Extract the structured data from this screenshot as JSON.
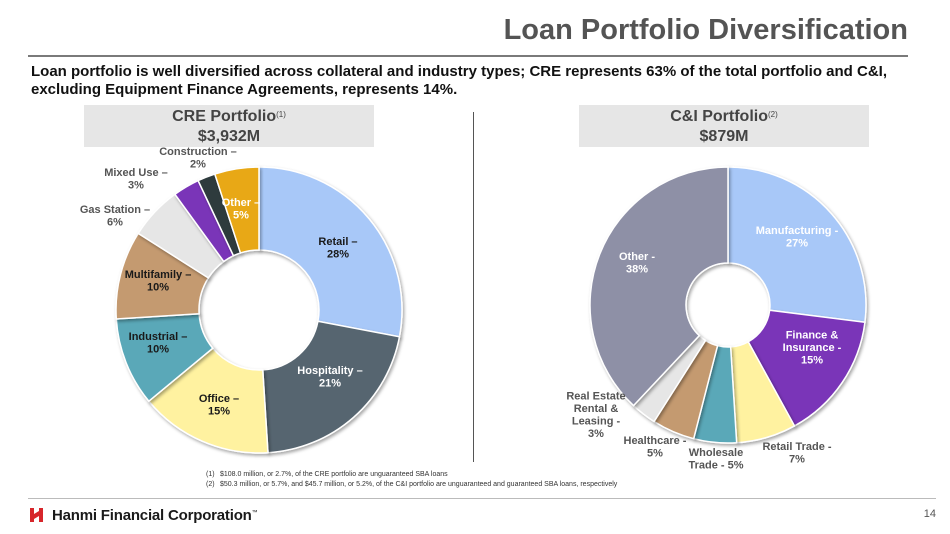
{
  "header": {
    "title": "Loan Portfolio Diversification",
    "subtitle": "Loan portfolio is well diversified across collateral and industry types; CRE represents 63% of the total portfolio and C&I, excluding Equipment Finance Agreements, represents 14%."
  },
  "cre_panel": {
    "title": "CRE Portfolio",
    "note": "(1)",
    "amount": "$3,932M"
  },
  "ci_panel": {
    "title": "C&I Portfolio",
    "note": "(2)",
    "amount": "$879M"
  },
  "chart_data": [
    {
      "type": "pie",
      "title": "CRE Portfolio",
      "series": [
        {
          "name": "Retail",
          "value": 28,
          "label": [
            "Retail –",
            "28%"
          ],
          "color": "#a8c8f8"
        },
        {
          "name": "Hospitality",
          "value": 21,
          "label": [
            "Hospitality –",
            "21%"
          ],
          "color": "#56656f"
        },
        {
          "name": "Office",
          "value": 15,
          "label": [
            "Office –",
            "15%"
          ],
          "color": "#fff2a0"
        },
        {
          "name": "Industrial",
          "value": 10,
          "label": [
            "Industrial –",
            "10%"
          ],
          "color": "#5aa8b8"
        },
        {
          "name": "Multifamily",
          "value": 10,
          "label": [
            "Multifamily –",
            "10%"
          ],
          "color": "#c49a70"
        },
        {
          "name": "Gas Station",
          "value": 6,
          "label": [
            "Gas Station –",
            "6%"
          ],
          "color": "#e6e6e6"
        },
        {
          "name": "Mixed Use",
          "value": 3,
          "label": [
            "Mixed Use –",
            "3%"
          ],
          "color": "#7a35b8"
        },
        {
          "name": "Construction",
          "value": 2,
          "label": [
            "Construction –",
            "2%"
          ],
          "color": "#2e3a3d"
        },
        {
          "name": "Other",
          "value": 5,
          "label": [
            "Other –",
            "5%"
          ],
          "color": "#e8a812"
        }
      ]
    },
    {
      "type": "pie",
      "title": "C&I Portfolio",
      "series": [
        {
          "name": "Manufacturing",
          "value": 27,
          "label": [
            "Manufacturing -",
            "27%"
          ],
          "color": "#a8c8f8"
        },
        {
          "name": "Finance & Insurance",
          "value": 15,
          "label": [
            "Finance &",
            "Insurance -",
            "15%"
          ],
          "color": "#7a35b8"
        },
        {
          "name": "Retail Trade",
          "value": 7,
          "label": [
            "Retail Trade -",
            "7%"
          ],
          "color": "#fff2a0"
        },
        {
          "name": "Wholesale Trade",
          "value": 5,
          "label": [
            "Wholesale",
            "Trade -  5%"
          ],
          "color": "#5aa8b8"
        },
        {
          "name": "Healthcare",
          "value": 5,
          "label": [
            "Healthcare -",
            "5%"
          ],
          "color": "#c49a70"
        },
        {
          "name": "Real Estate Rental & Leasing",
          "value": 3,
          "label": [
            "Real Estate",
            "Rental &",
            "Leasing -",
            "3%"
          ],
          "color": "#e6e6e6"
        },
        {
          "name": "Other",
          "value": 38,
          "label": [
            "Other -",
            "38%"
          ],
          "color": "#8e90a6"
        }
      ]
    }
  ],
  "footnotes": [
    {
      "num": "(1)",
      "text": "$108.0 million, or 2.7%, of the CRE portfolio are unguaranteed SBA loans"
    },
    {
      "num": "(2)",
      "text": "$50.3 million, or 5.7%, and $45.7 million, or 5.2%, of the C&I portfolio are unguaranteed and guaranteed SBA loans, respectively"
    }
  ],
  "footer": {
    "company": "Hanmi Financial Corporation",
    "tm": "™",
    "page": "14"
  },
  "colors": {
    "brand_red": "#d7262b",
    "title_gray": "#545454"
  }
}
